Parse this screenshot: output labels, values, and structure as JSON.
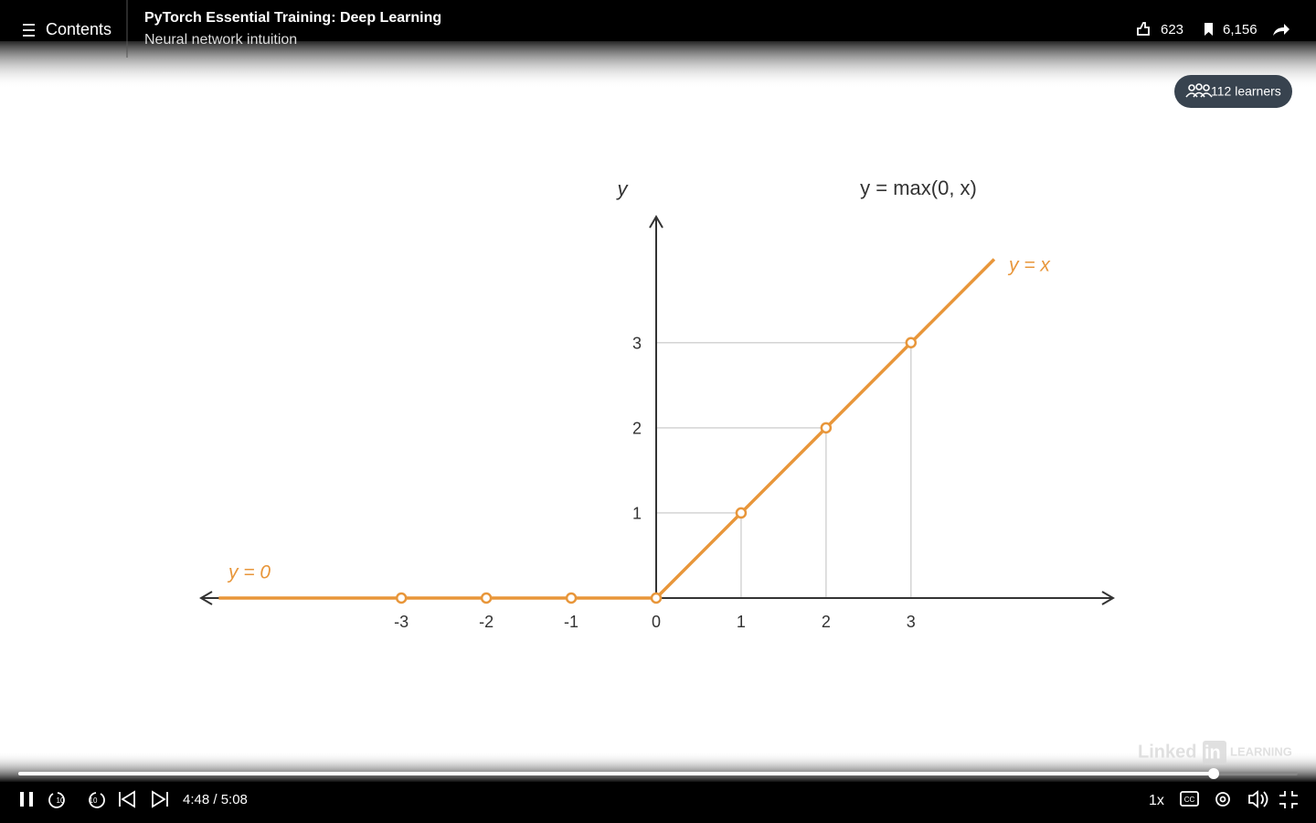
{
  "header": {
    "contents": "Contents",
    "title": "PyTorch Essential Training: Deep Learning",
    "subtitle": "Neural network intuition",
    "likes": "623",
    "saves": "6,156"
  },
  "learners": "112 learners",
  "slide": {
    "y_label": "y",
    "formula": "y = max(0, x)",
    "line_label": "y = x",
    "zero_label": "y = 0",
    "xlim": [
      -5.38,
      5.38
    ],
    "ylim": [
      0,
      4.48
    ],
    "xticks": [
      -3,
      -2,
      -1,
      0,
      1,
      2,
      3
    ],
    "yticks": [
      1,
      2,
      3
    ],
    "line_x": [
      -5.15,
      0,
      3.98
    ],
    "points": {
      "x": [
        -3,
        -2,
        -1,
        0,
        1,
        2,
        3
      ],
      "y": [
        0,
        0,
        0,
        0,
        1,
        2,
        3
      ]
    },
    "color": "#e8963a"
  },
  "watermark": {
    "brand": "Linked",
    "in": "in",
    "product": "LEARNING"
  },
  "controls": {
    "time": "4:48 / 5:08",
    "speed": "1x"
  }
}
